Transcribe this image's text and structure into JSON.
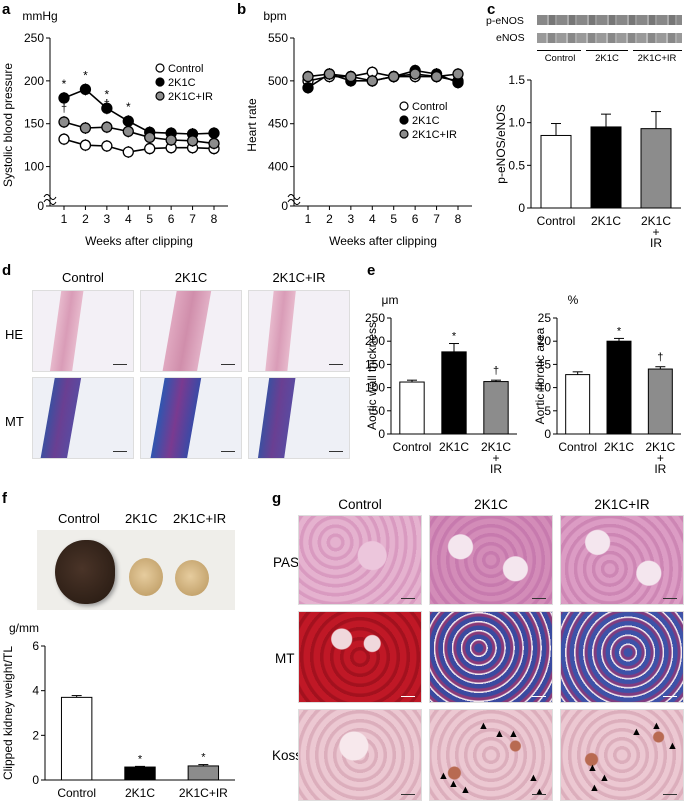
{
  "panels": {
    "a": "a",
    "b": "b",
    "c": "c",
    "d": "d",
    "e": "e",
    "f": "f",
    "g": "g"
  },
  "colors": {
    "control": "#ffffff",
    "k2c": "#000000",
    "ir": "#8c8c8c",
    "he_stain": "#e7b9cc",
    "mt_stain": "#5a4aa0",
    "pas_stain": "#dca6c6",
    "mt_kidney_control": "#c01826",
    "kossa_stain": "#e8c7cf"
  },
  "chart_data": [
    {
      "id": "a",
      "type": "line",
      "title": "",
      "unit": "mmHg",
      "xlabel": "Weeks after clipping",
      "ylabel": "Systolic blood pressure",
      "x": [
        1,
        2,
        3,
        4,
        5,
        6,
        7,
        8
      ],
      "ylim": [
        0,
        250
      ],
      "yticks": [
        "0",
        "100",
        "150",
        "200",
        "250"
      ],
      "series": [
        {
          "name": "Control",
          "values": [
            132,
            125,
            124,
            117,
            121,
            122,
            122,
            121
          ]
        },
        {
          "name": "2K1C",
          "values": [
            180,
            190,
            168,
            153,
            140,
            139,
            138,
            139
          ]
        },
        {
          "name": "2K1C+IR",
          "values": [
            152,
            145,
            146,
            141,
            134,
            131,
            130,
            127
          ]
        }
      ],
      "annotations": [
        "*",
        "*",
        "*",
        "*",
        "†",
        "†"
      ]
    },
    {
      "id": "b",
      "type": "line",
      "title": "",
      "unit": "bpm",
      "xlabel": "Weeks after clipping",
      "ylabel": "Heart rate",
      "x": [
        1,
        2,
        3,
        4,
        5,
        6,
        7,
        8
      ],
      "ylim": [
        0,
        550
      ],
      "yticks": [
        "0",
        "400",
        "450",
        "500",
        "550"
      ],
      "series": [
        {
          "name": "Control",
          "values": [
            500,
            505,
            505,
            510,
            505,
            505,
            505,
            500
          ]
        },
        {
          "name": "2K1C",
          "values": [
            492,
            508,
            500,
            500,
            505,
            512,
            508,
            498
          ]
        },
        {
          "name": "2K1C+IR",
          "values": [
            505,
            508,
            505,
            500,
            505,
            508,
            505,
            508
          ]
        }
      ]
    },
    {
      "id": "c",
      "type": "bar",
      "title": "",
      "ylabel": "p-eNOS/eNOS",
      "categories": [
        "Control",
        "2K1C",
        "2K1C\n+\nIR"
      ],
      "values": [
        0.85,
        0.95,
        0.93
      ],
      "errors": [
        0.14,
        0.15,
        0.2
      ],
      "ylim": [
        0,
        1.5
      ],
      "yticks": [
        "0",
        "0.5",
        "1.0",
        "1.5"
      ],
      "blot_labels": [
        "p-eNOS",
        "eNOS"
      ],
      "blot_groups": [
        "Control",
        "2K1C",
        "2K1C+IR"
      ]
    },
    {
      "id": "e1",
      "type": "bar",
      "title": "",
      "unit": "μm",
      "ylabel": "Aortic wall thickness",
      "categories": [
        "Control",
        "2K1C",
        "2K1C\n+\nIR"
      ],
      "values": [
        112,
        177,
        113
      ],
      "errors": [
        4,
        18,
        3
      ],
      "ylim": [
        0,
        250
      ],
      "yticks": [
        "0",
        "50",
        "100",
        "150",
        "200",
        "250"
      ],
      "annotations": [
        "*",
        "†"
      ]
    },
    {
      "id": "e2",
      "type": "bar",
      "title": "",
      "unit": "%",
      "ylabel": "Aortic fibrotic area",
      "categories": [
        "Control",
        "2K1C",
        "2K1C\n+\nIR"
      ],
      "values": [
        12.8,
        20.0,
        14.0
      ],
      "errors": [
        0.6,
        0.6,
        0.5
      ],
      "ylim": [
        0,
        25
      ],
      "yticks": [
        "0",
        "5",
        "10",
        "15",
        "20",
        "25"
      ],
      "annotations": [
        "*",
        "†"
      ]
    },
    {
      "id": "f",
      "type": "bar",
      "title": "",
      "unit": "g/mm",
      "ylabel": "Clipped kidney weight/TL",
      "categories": [
        "Control",
        "2K1C",
        "2K1C+IR"
      ],
      "values": [
        3.7,
        0.58,
        0.63
      ],
      "errors": [
        0.08,
        0.03,
        0.06
      ],
      "ylim": [
        0,
        6
      ],
      "yticks": [
        "0",
        "2",
        "4",
        "6"
      ],
      "annotations": [
        "*",
        "*"
      ]
    }
  ],
  "panel_d": {
    "columns": [
      "Control",
      "2K1C",
      "2K1C+IR"
    ],
    "rows": [
      "HE",
      "MT"
    ]
  },
  "panel_f_photo": {
    "labels": [
      "Control",
      "2K1C",
      "2K1C+IR"
    ]
  },
  "panel_g": {
    "columns": [
      "Control",
      "2K1C",
      "2K1C+IR"
    ],
    "rows": [
      "PAS",
      "MT",
      "Kossa"
    ]
  }
}
